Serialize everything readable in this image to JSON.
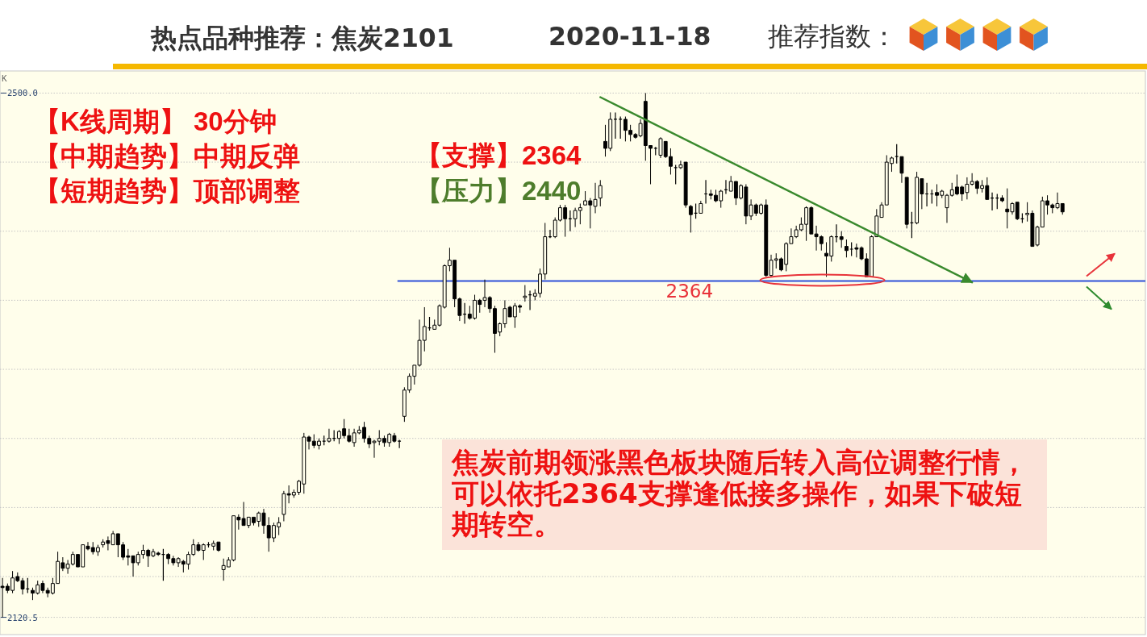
{
  "chart_data": {
    "type": "candlestick",
    "title": "热点品种推荐：焦炭2101",
    "subtitle": "2020-11-18",
    "categories": [
      null,
      null,
      null,
      null,
      null,
      null,
      null,
      null,
      null,
      null,
      null,
      null,
      null,
      null,
      null,
      null,
      null,
      null,
      null,
      null,
      null,
      null,
      null,
      null,
      null,
      null,
      null,
      null,
      null,
      null,
      null,
      null,
      null,
      null,
      null,
      null,
      null,
      null,
      null,
      null,
      null,
      null,
      null,
      null,
      null,
      null,
      null,
      null,
      null,
      null,
      null,
      null,
      null,
      null,
      null,
      null,
      null,
      null,
      null,
      null,
      null,
      null,
      null,
      null,
      null,
      null,
      null,
      null,
      null,
      null,
      null,
      null,
      null,
      null,
      null,
      null,
      null,
      null,
      null,
      null,
      null,
      null,
      null,
      null,
      null,
      null,
      null,
      null,
      null,
      null,
      null,
      null,
      null,
      null,
      null,
      null,
      null,
      null,
      null,
      null,
      null,
      null,
      null,
      null,
      null,
      null,
      null,
      null,
      null,
      null,
      null,
      null,
      null,
      null,
      null,
      null,
      null,
      null,
      null,
      null,
      null,
      null,
      null,
      null,
      null,
      null,
      null,
      null,
      null,
      null,
      null,
      null,
      null,
      null,
      null,
      null,
      null,
      null,
      null,
      null,
      null,
      null,
      null,
      null,
      null,
      null,
      null,
      null,
      null,
      null,
      null,
      null,
      null,
      null,
      null,
      null,
      null,
      null,
      null,
      null,
      null,
      null,
      null,
      null,
      null,
      null,
      null,
      null,
      null,
      null,
      null,
      null,
      null,
      null,
      null,
      null,
      null,
      null,
      null,
      null,
      null,
      null,
      null,
      null,
      null,
      null,
      null,
      null,
      null,
      null,
      null,
      null,
      null,
      null,
      null,
      null,
      null,
      null,
      null,
      null,
      null,
      null,
      null,
      null,
      null,
      null,
      null,
      null,
      null,
      null,
      null,
      null,
      null,
      null,
      null,
      null,
      null,
      null,
      null,
      null,
      null,
      null,
      null,
      null,
      null,
      null,
      null,
      null
    ],
    "ohlc": [
      [
        2143,
        2149,
        2120.5,
        2142
      ],
      [
        2143,
        2145,
        2138,
        2140
      ],
      [
        2140,
        2154,
        2138,
        2149
      ],
      [
        2150,
        2153,
        2146,
        2147
      ],
      [
        2147,
        2149,
        2137,
        2141
      ],
      [
        2141,
        2149,
        2138,
        2141
      ],
      [
        2140,
        2142,
        2133,
        2138
      ],
      [
        2138,
        2147,
        2137,
        2144
      ],
      [
        2145,
        2147,
        2138,
        2140
      ],
      [
        2140,
        2142,
        2135,
        2138
      ],
      [
        2138,
        2149,
        2137,
        2145
      ],
      [
        2145,
        2168,
        2145,
        2161
      ],
      [
        2160,
        2164,
        2154,
        2156
      ],
      [
        2156,
        2162,
        2152,
        2159
      ],
      [
        2159,
        2168,
        2158,
        2166
      ],
      [
        2166,
        2166,
        2157,
        2157
      ],
      [
        2157,
        2173,
        2157,
        2173
      ],
      [
        2172,
        2175,
        2169,
        2170
      ],
      [
        2171,
        2175,
        2166,
        2168
      ],
      [
        2168,
        2173,
        2165,
        2171
      ],
      [
        2173,
        2177,
        2171,
        2175
      ],
      [
        2176,
        2179,
        2169,
        2174
      ],
      [
        2173,
        2183,
        2173,
        2181
      ],
      [
        2181,
        2181,
        2164,
        2173
      ],
      [
        2173,
        2175,
        2162,
        2164
      ],
      [
        2165,
        2170,
        2158,
        2164
      ],
      [
        2165,
        2165,
        2150,
        2160
      ],
      [
        2160,
        2168,
        2158,
        2166
      ],
      [
        2166,
        2173,
        2163,
        2169
      ],
      [
        2169,
        2170,
        2157,
        2165
      ],
      [
        2165,
        2170,
        2164,
        2168
      ],
      [
        2167,
        2168,
        2165,
        2166
      ],
      [
        2166,
        2170,
        2147,
        2166
      ],
      [
        2166,
        2167,
        2159,
        2163
      ],
      [
        2163,
        2165,
        2158,
        2160
      ],
      [
        2160,
        2164,
        2157,
        2163
      ],
      [
        2161,
        2162,
        2153,
        2159
      ],
      [
        2159,
        2168,
        2155,
        2166
      ],
      [
        2166,
        2177,
        2165,
        2173
      ],
      [
        2173,
        2175,
        2168,
        2169
      ],
      [
        2169,
        2174,
        2162,
        2173
      ],
      [
        2173,
        2175,
        2171,
        2173
      ],
      [
        2172,
        2176,
        2169,
        2174
      ],
      [
        2175,
        2175,
        2168,
        2169
      ],
      [
        2155,
        2163,
        2147,
        2158
      ],
      [
        2157,
        2164,
        2157,
        2162
      ],
      [
        2162,
        2194,
        2161,
        2194
      ],
      [
        2193,
        2195,
        2184,
        2191
      ],
      [
        2192,
        2204,
        2187,
        2187
      ],
      [
        2187,
        2193,
        2185,
        2193
      ],
      [
        2193,
        2193,
        2187,
        2189
      ],
      [
        2190,
        2197,
        2186,
        2196
      ],
      [
        2196,
        2199,
        2181,
        2187
      ],
      [
        2187,
        2193,
        2168,
        2178
      ],
      [
        2178,
        2189,
        2175,
        2187
      ],
      [
        2186,
        2193,
        2180,
        2189
      ],
      [
        2195,
        2212,
        2190,
        2210
      ],
      [
        2210,
        2216,
        2203,
        2209
      ],
      [
        2209,
        2213,
        2207,
        2211
      ],
      [
        2211,
        2220,
        2209,
        2219
      ],
      [
        2217,
        2254,
        2210,
        2251
      ],
      [
        2251,
        2252,
        2242,
        2248
      ],
      [
        2248,
        2253,
        2243,
        2245
      ],
      [
        2245,
        2250,
        2242,
        2248
      ],
      [
        2248,
        2252,
        2245,
        2248
      ],
      [
        2248,
        2257,
        2247,
        2250
      ],
      [
        2250,
        2256,
        2248,
        2250
      ],
      [
        2250,
        2256,
        2246,
        2255
      ],
      [
        2257,
        2264,
        2250,
        2252
      ],
      [
        2252,
        2257,
        2247,
        2248
      ],
      [
        2247,
        2257,
        2244,
        2254
      ],
      [
        2254,
        2259,
        2253,
        2256
      ],
      [
        2258,
        2262,
        2247,
        2250
      ],
      [
        2250,
        2252,
        2243,
        2246
      ],
      [
        2247,
        2249,
        2236,
        2248
      ],
      [
        2248,
        2256,
        2245,
        2250
      ],
      [
        2250,
        2252,
        2244,
        2247
      ],
      [
        2247,
        2254,
        2244,
        2253
      ],
      [
        2252,
        2254,
        2247,
        2248
      ],
      [
        2248,
        2249,
        2243,
        2248
      ],
      [
        2266,
        2287,
        2262,
        2285
      ],
      [
        2285,
        2297,
        2283,
        2295
      ],
      [
        2295,
        2303,
        2289,
        2303
      ],
      [
        2303,
        2336,
        2302,
        2321
      ],
      [
        2321,
        2345,
        2313,
        2331
      ],
      [
        2330,
        2338,
        2328,
        2330
      ],
      [
        2329,
        2336,
        2329,
        2332
      ],
      [
        2332,
        2347,
        2331,
        2346
      ],
      [
        2345,
        2376,
        2344,
        2375
      ],
      [
        2375,
        2388,
        2371,
        2379
      ],
      [
        2379,
        2379,
        2345,
        2351
      ],
      [
        2351,
        2352,
        2335,
        2339
      ],
      [
        2340,
        2348,
        2333,
        2340
      ],
      [
        2340,
        2346,
        2336,
        2337
      ],
      [
        2337,
        2354,
        2336,
        2350
      ],
      [
        2350,
        2351,
        2341,
        2347
      ],
      [
        2350,
        2365,
        2345,
        2352
      ],
      [
        2352,
        2353,
        2341,
        2344
      ],
      [
        2344,
        2346,
        2312,
        2326
      ],
      [
        2327,
        2334,
        2324,
        2333
      ],
      [
        2333,
        2350,
        2330,
        2344
      ],
      [
        2345,
        2346,
        2338,
        2338
      ],
      [
        2338,
        2348,
        2330,
        2346
      ],
      [
        2346,
        2347,
        2341,
        2345
      ],
      [
        2352,
        2361,
        2349,
        2353
      ],
      [
        2354,
        2357,
        2343,
        2354
      ],
      [
        2353,
        2358,
        2350,
        2355
      ],
      [
        2355,
        2373,
        2352,
        2369
      ],
      [
        2369,
        2406,
        2365,
        2396
      ],
      [
        2396,
        2401,
        2395,
        2396
      ],
      [
        2396,
        2410,
        2395,
        2408
      ],
      [
        2408,
        2419,
        2407,
        2417
      ],
      [
        2417,
        2419,
        2396,
        2409
      ],
      [
        2409,
        2415,
        2400,
        2409
      ],
      [
        2409,
        2417,
        2403,
        2415
      ],
      [
        2415,
        2420,
        2405,
        2417
      ],
      [
        2419,
        2429,
        2419,
        2422
      ],
      [
        2422,
        2424,
        2402,
        2419
      ],
      [
        2418,
        2435,
        2413,
        2423
      ],
      [
        2424,
        2437,
        2418,
        2433
      ],
      [
        2465,
        2477,
        2454,
        2460
      ],
      [
        2460,
        2486,
        2458,
        2481
      ],
      [
        2481,
        2486,
        2467,
        2481
      ],
      [
        2481,
        2483,
        2467,
        2481
      ],
      [
        2481,
        2483,
        2465,
        2473
      ],
      [
        2473,
        2477,
        2465,
        2470
      ],
      [
        2470,
        2471,
        2467,
        2468
      ],
      [
        2469,
        2481,
        2468,
        2478
      ],
      [
        2494,
        2500,
        2451,
        2462
      ],
      [
        2462,
        2462,
        2434,
        2460
      ],
      [
        2460,
        2461,
        2455,
        2460
      ],
      [
        2455,
        2468,
        2453,
        2467
      ],
      [
        2465,
        2465,
        2453,
        2454
      ],
      [
        2454,
        2460,
        2441,
        2447
      ],
      [
        2446,
        2448,
        2434,
        2446
      ],
      [
        2446,
        2451,
        2445,
        2448
      ],
      [
        2450,
        2450,
        2417,
        2419
      ],
      [
        2418,
        2419,
        2399,
        2412
      ],
      [
        2413,
        2420,
        2409,
        2413
      ],
      [
        2413,
        2422,
        2413,
        2420
      ],
      [
        2427,
        2437,
        2420,
        2427
      ],
      [
        2427,
        2430,
        2423,
        2426
      ],
      [
        2426,
        2430,
        2421,
        2422
      ],
      [
        2422,
        2430,
        2417,
        2429
      ],
      [
        2430,
        2437,
        2427,
        2430
      ],
      [
        2429,
        2440,
        2429,
        2436
      ],
      [
        2436,
        2436,
        2419,
        2424
      ],
      [
        2424,
        2434,
        2423,
        2433
      ],
      [
        2432,
        2434,
        2405,
        2411
      ],
      [
        2411,
        2423,
        2408,
        2419
      ],
      [
        2419,
        2420,
        2411,
        2413
      ],
      [
        2413,
        2420,
        2412,
        2419
      ],
      [
        2419,
        2423,
        2367,
        2368
      ],
      [
        2368,
        2383,
        2367,
        2379
      ],
      [
        2379,
        2384,
        2373,
        2380
      ],
      [
        2380,
        2381,
        2371,
        2372
      ],
      [
        2376,
        2392,
        2371,
        2391
      ],
      [
        2391,
        2402,
        2391,
        2396
      ],
      [
        2396,
        2404,
        2395,
        2401
      ],
      [
        2401,
        2410,
        2400,
        2405
      ],
      [
        2405,
        2418,
        2393,
        2417
      ],
      [
        2417,
        2418,
        2398,
        2398
      ],
      [
        2398,
        2404,
        2386,
        2396
      ],
      [
        2396,
        2397,
        2386,
        2391
      ],
      [
        2384,
        2392,
        2367,
        2382
      ],
      [
        2382,
        2397,
        2378,
        2396
      ],
      [
        2396,
        2405,
        2392,
        2396
      ],
      [
        2396,
        2400,
        2388,
        2394
      ],
      [
        2389,
        2394,
        2381,
        2386
      ],
      [
        2387,
        2392,
        2382,
        2387
      ],
      [
        2388,
        2391,
        2381,
        2387
      ],
      [
        2388,
        2389,
        2379,
        2380
      ],
      [
        2380,
        2384,
        2367,
        2367
      ],
      [
        2367,
        2397,
        2367,
        2396
      ],
      [
        2396,
        2416,
        2396,
        2411
      ],
      [
        2410,
        2421,
        2410,
        2419
      ],
      [
        2419,
        2455,
        2419,
        2450
      ],
      [
        2449,
        2454,
        2443,
        2453
      ],
      [
        2454,
        2463,
        2449,
        2454
      ],
      [
        2454,
        2454,
        2435,
        2442
      ],
      [
        2439,
        2439,
        2402,
        2405
      ],
      [
        2406,
        2414,
        2395,
        2406
      ],
      [
        2406,
        2443,
        2405,
        2439
      ],
      [
        2438,
        2438,
        2416,
        2427
      ],
      [
        2427,
        2435,
        2418,
        2427
      ],
      [
        2427,
        2430,
        2420,
        2427
      ],
      [
        2428,
        2434,
        2418,
        2426
      ],
      [
        2426,
        2430,
        2424,
        2429
      ],
      [
        2417,
        2427,
        2406,
        2426
      ],
      [
        2426,
        2435,
        2425,
        2430
      ],
      [
        2432,
        2441,
        2426,
        2427
      ],
      [
        2432,
        2433,
        2422,
        2427
      ],
      [
        2428,
        2439,
        2423,
        2434
      ],
      [
        2434,
        2442,
        2433,
        2436
      ],
      [
        2436,
        2437,
        2427,
        2431
      ],
      [
        2431,
        2437,
        2428,
        2433
      ],
      [
        2433,
        2439,
        2423,
        2423
      ],
      [
        2424,
        2428,
        2415,
        2424
      ],
      [
        2424,
        2427,
        2416,
        2424
      ],
      [
        2424,
        2426,
        2421,
        2422
      ],
      [
        2416,
        2431,
        2402,
        2414
      ],
      [
        2414,
        2421,
        2412,
        2420
      ],
      [
        2421,
        2421,
        2408,
        2409
      ],
      [
        2409,
        2413,
        2406,
        2409
      ],
      [
        2412,
        2421,
        2407,
        2413
      ],
      [
        2413,
        2415,
        2389,
        2389
      ],
      [
        2390,
        2404,
        2389,
        2403
      ],
      [
        2403,
        2425,
        2403,
        2422
      ],
      [
        2422,
        2426,
        2412,
        2419
      ],
      [
        2419,
        2420,
        2413,
        2417
      ],
      [
        2417,
        2428,
        2416,
        2420
      ],
      [
        2420,
        2420,
        2412,
        2414
      ],
      null,
      null,
      null,
      null,
      null,
      null,
      null,
      null,
      null,
      null,
      null,
      null,
      null,
      null,
      null,
      null
    ],
    "color": "#000000",
    "ylim": [
      2108,
      2516
    ],
    "yticks": [
      {
        "value": 2120.5,
        "label": "2120.5"
      },
      {
        "value": 2150,
        "label": null
      },
      {
        "value": 2200,
        "label": null
      },
      {
        "value": 2250,
        "label": null
      },
      {
        "value": 2300,
        "label": null
      },
      {
        "value": 2350,
        "label": null
      },
      {
        "value": 2400,
        "label": null
      },
      {
        "value": 2450,
        "label": null
      },
      {
        "value": 2500,
        "label": "2500.0"
      }
    ],
    "grid": "y",
    "tick_labels": "y",
    "series": [
      {
        "type": "line",
        "color": "#3a8a2e",
        "values": [
          null,
          null,
          null,
          null,
          null,
          null,
          null,
          null,
          null,
          null,
          null,
          null,
          null,
          null,
          null,
          null,
          null,
          null,
          null,
          null,
          null,
          null,
          null,
          null,
          null,
          null,
          null,
          null,
          null,
          null,
          null,
          null,
          null,
          null,
          null,
          null,
          null,
          null,
          null,
          null,
          null,
          null,
          null,
          null,
          null,
          null,
          null,
          null,
          null,
          null,
          null,
          null,
          null,
          null,
          null,
          null,
          null,
          null,
          null,
          null,
          null,
          null,
          null,
          null,
          null,
          null,
          null,
          null,
          null,
          null,
          null,
          null,
          null,
          null,
          null,
          null,
          null,
          null,
          null,
          null,
          null,
          null,
          null,
          null,
          null,
          null,
          null,
          null,
          null,
          null,
          null,
          null,
          null,
          null,
          null,
          null,
          null,
          null,
          null,
          null,
          null,
          null,
          null,
          null,
          null,
          null,
          null,
          null,
          null,
          null,
          null,
          null,
          null,
          null,
          null,
          null,
          null,
          null,
          null,
          2497,
          null,
          null,
          null,
          null,
          null,
          null,
          null,
          null,
          null,
          null,
          null,
          null,
          null,
          null,
          null,
          null,
          null,
          null,
          null,
          null,
          null,
          null,
          null,
          null,
          null,
          null,
          null,
          null,
          null,
          null,
          null,
          null,
          null,
          null,
          null,
          null,
          null,
          null,
          null,
          null,
          null,
          null,
          null,
          null,
          null,
          null,
          null,
          null,
          null,
          null,
          null,
          null,
          null,
          null,
          null,
          null,
          null,
          null,
          null,
          null,
          null,
          null,
          null,
          null,
          null,
          null,
          null,
          null,
          null,
          null,
          null,
          null,
          null,
          2363,
          null,
          null,
          null,
          null,
          null,
          null,
          null,
          null,
          null,
          null,
          null,
          null,
          null,
          null,
          null,
          null,
          null,
          null,
          null,
          null,
          null,
          null,
          null,
          null,
          null,
          null,
          null,
          null,
          null,
          null,
          null,
          null,
          null,
          null
        ]
      }
    ],
    "ref_lines": [
      {
        "axis": "y",
        "value": 2364,
        "label": "2364",
        "color": "#2f50d8"
      }
    ],
    "annotations": [
      "推荐指数：",
      "K",
      "【K线周期】 30分钟",
      "【中期趋势】中期反弹",
      "【短期趋势】顶部调整",
      "【支撑】2364",
      "【压力】2440",
      "焦炭前期领涨黑色板块随后转入高位调整行情，可以依托2364支撑逢低接多操作，如果下破短期转空。"
    ]
  }
}
